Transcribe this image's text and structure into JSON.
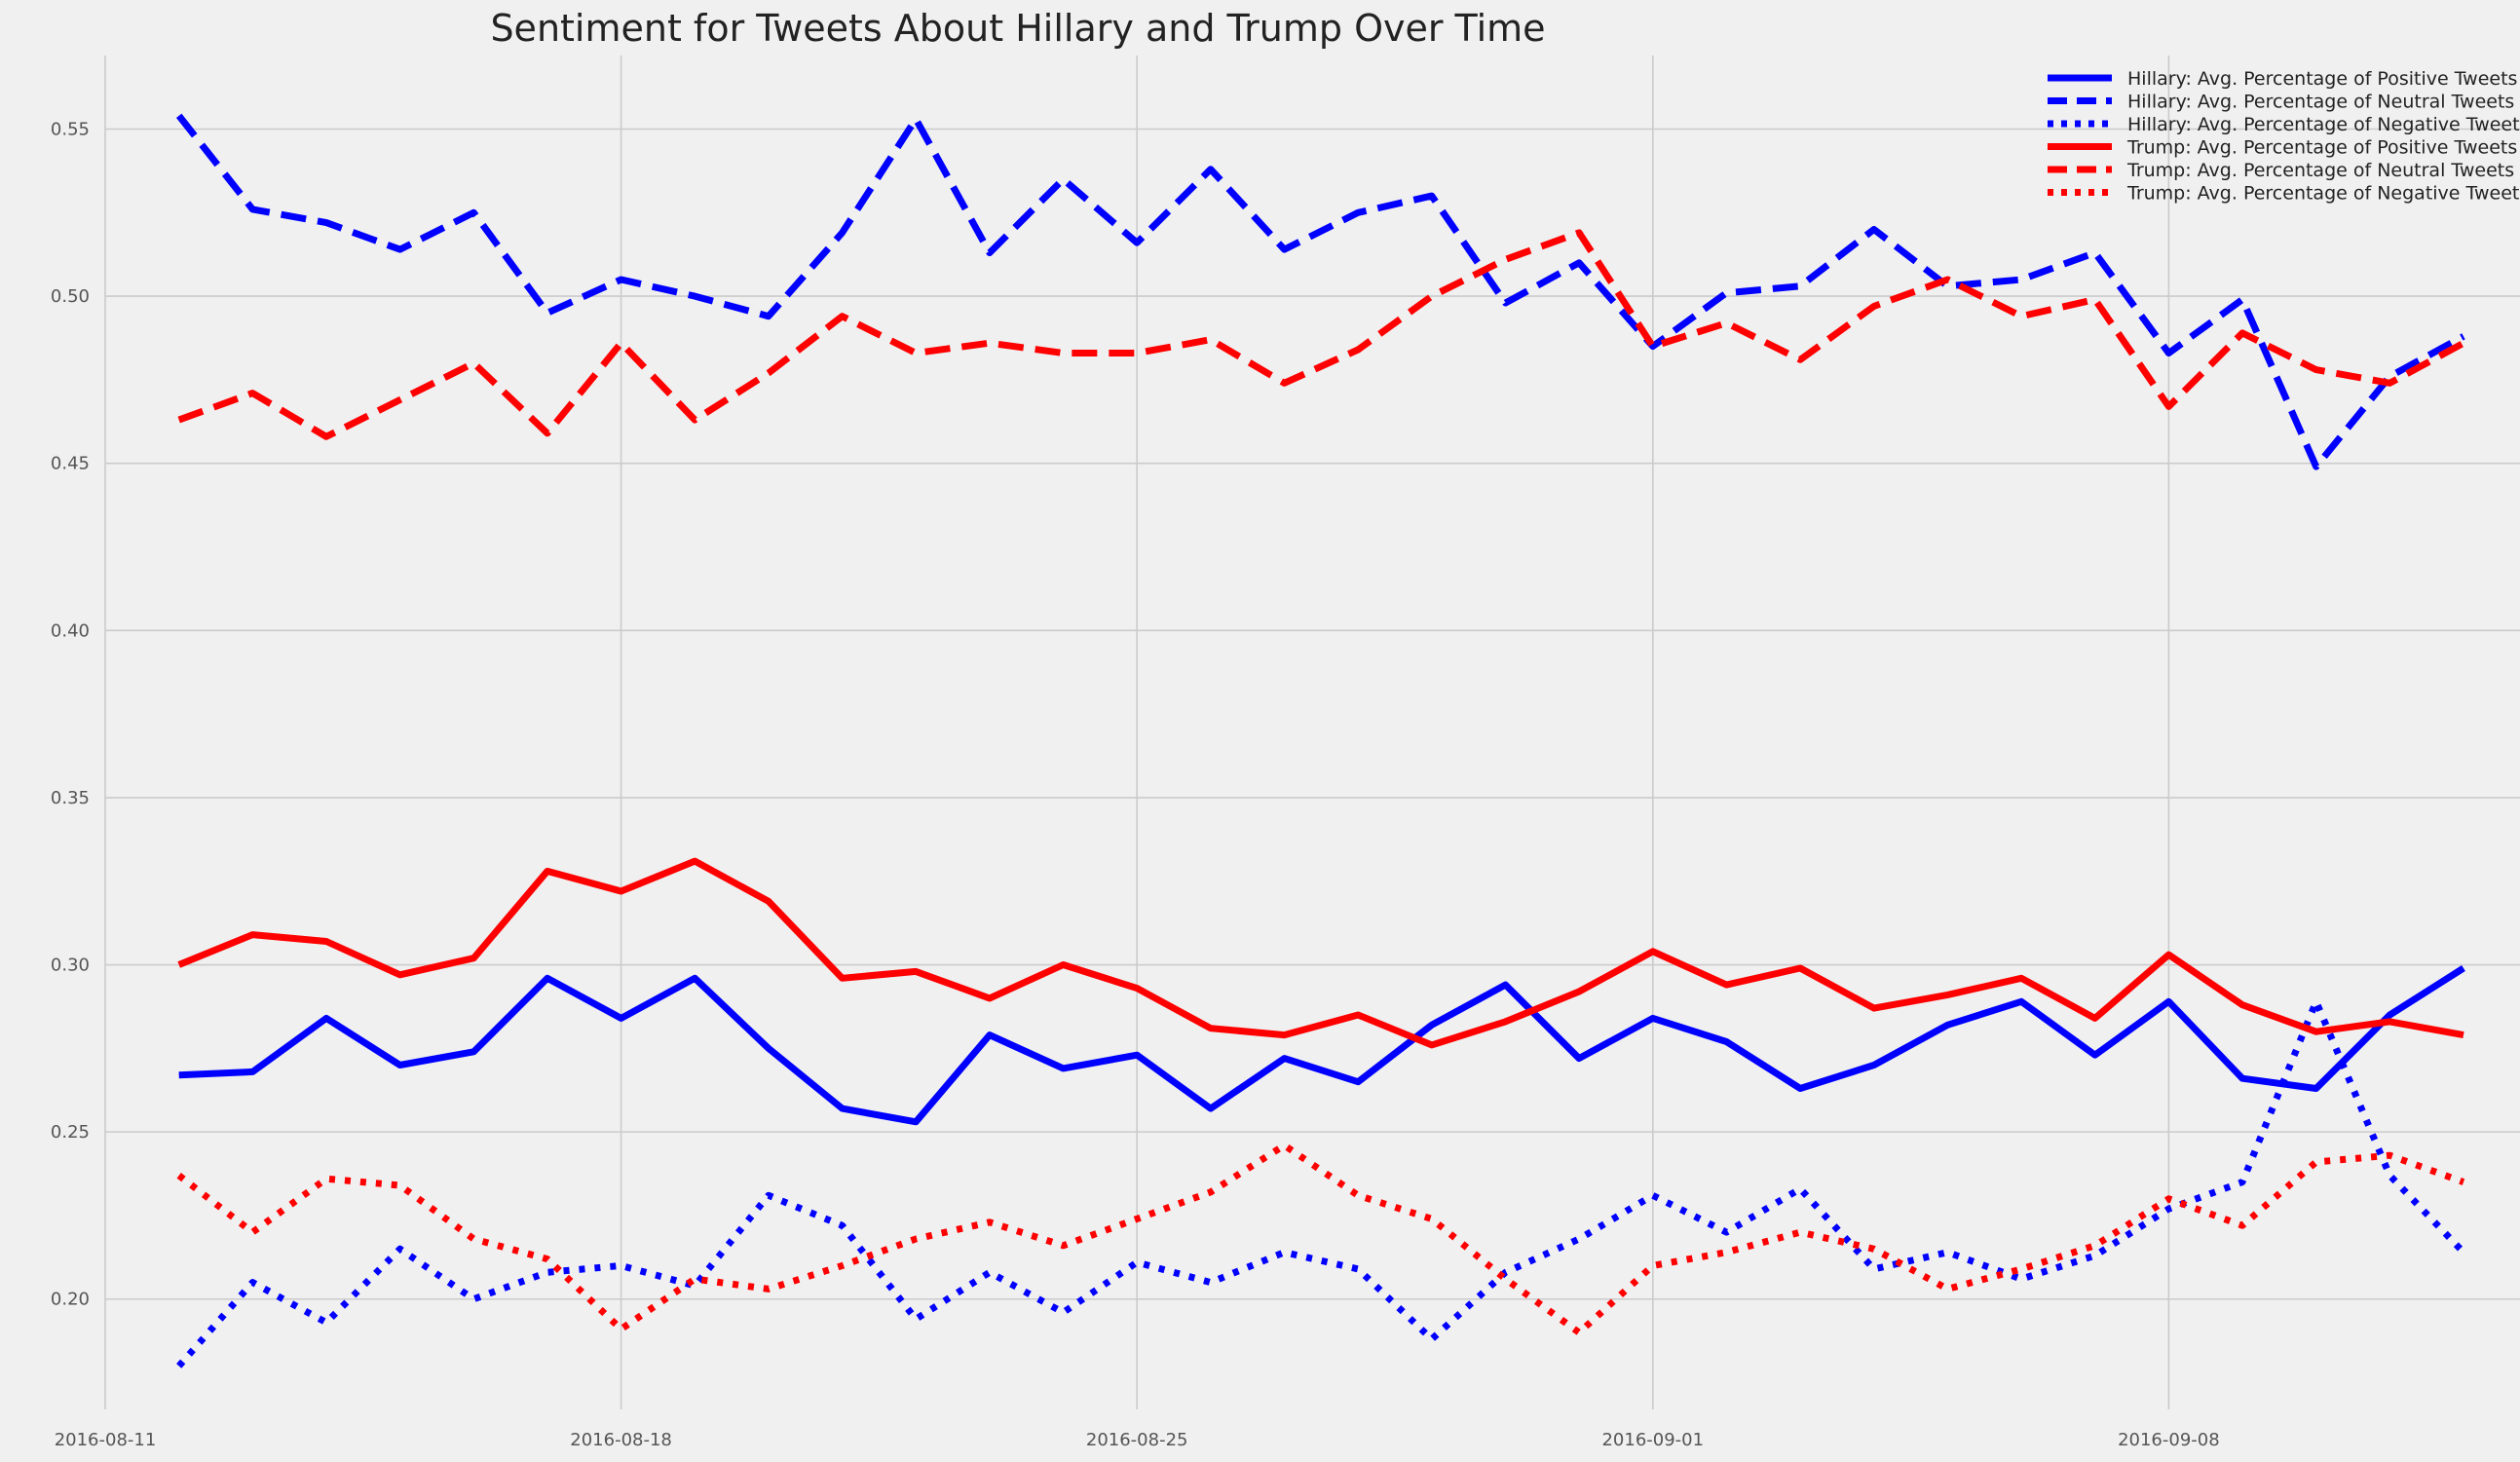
{
  "chart_data": {
    "type": "line",
    "title": "Sentiment for Tweets About Hillary and Trump Over Time",
    "xlabel": "",
    "ylabel": "",
    "x_start": "2016-08-11",
    "x_end": "2016-09-12",
    "x_ticks": [
      "2016-08-11",
      "2016-08-18",
      "2016-08-25",
      "2016-09-01",
      "2016-09-08"
    ],
    "ylim": [
      0.167,
      0.572
    ],
    "y_ticks": [
      0.2,
      0.25,
      0.3,
      0.35,
      0.4,
      0.45,
      0.5,
      0.55
    ],
    "y_tick_labels": [
      "0.20",
      "0.25",
      "0.30",
      "0.35",
      "0.40",
      "0.45",
      "0.50",
      "0.55"
    ],
    "grid": true,
    "legend_position": "top-right",
    "x": [
      "2016-08-12",
      "2016-08-13",
      "2016-08-14",
      "2016-08-15",
      "2016-08-16",
      "2016-08-17",
      "2016-08-18",
      "2016-08-19",
      "2016-08-20",
      "2016-08-21",
      "2016-08-22",
      "2016-08-23",
      "2016-08-24",
      "2016-08-25",
      "2016-08-26",
      "2016-08-27",
      "2016-08-28",
      "2016-08-29",
      "2016-08-30",
      "2016-08-31",
      "2016-09-01",
      "2016-09-02",
      "2016-09-03",
      "2016-09-04",
      "2016-09-05",
      "2016-09-06",
      "2016-09-07",
      "2016-09-08",
      "2016-09-09",
      "2016-09-10",
      "2016-09-11",
      "2016-09-12"
    ],
    "series": [
      {
        "name": "Hillary: Avg. Percentage of Positive Tweets",
        "color": "#0000ff",
        "style": "solid",
        "values": [
          0.267,
          0.268,
          0.284,
          0.27,
          0.274,
          0.296,
          0.284,
          0.296,
          0.275,
          0.257,
          0.253,
          0.279,
          0.269,
          0.273,
          0.257,
          0.272,
          0.265,
          0.282,
          0.294,
          0.272,
          0.284,
          0.277,
          0.263,
          0.27,
          0.282,
          0.289,
          0.273,
          0.289,
          0.266,
          0.263,
          0.285,
          0.299
        ]
      },
      {
        "name": "Hillary: Avg. Percentage of Neutral Tweets",
        "color": "#0000ff",
        "style": "dashed",
        "values": [
          0.554,
          0.526,
          0.522,
          0.514,
          0.525,
          0.495,
          0.505,
          0.5,
          0.494,
          0.519,
          0.553,
          0.513,
          0.535,
          0.516,
          0.538,
          0.514,
          0.525,
          0.53,
          0.498,
          0.51,
          0.485,
          0.501,
          0.503,
          0.52,
          0.503,
          0.505,
          0.513,
          0.483,
          0.499,
          0.449,
          0.476,
          0.488
        ]
      },
      {
        "name": "Hillary: Avg. Percentage of Negative Tweets",
        "color": "#0000ff",
        "style": "dotted",
        "values": [
          0.18,
          0.205,
          0.193,
          0.215,
          0.2,
          0.208,
          0.21,
          0.204,
          0.231,
          0.222,
          0.194,
          0.208,
          0.196,
          0.211,
          0.205,
          0.214,
          0.209,
          0.188,
          0.208,
          0.218,
          0.231,
          0.22,
          0.233,
          0.209,
          0.214,
          0.206,
          0.213,
          0.227,
          0.235,
          0.289,
          0.237,
          0.214
        ]
      },
      {
        "name": "Trump: Avg. Percentage of Positive Tweets",
        "color": "#ff0000",
        "style": "solid",
        "values": [
          0.3,
          0.309,
          0.307,
          0.297,
          0.302,
          0.328,
          0.322,
          0.331,
          0.319,
          0.296,
          0.298,
          0.29,
          0.3,
          0.293,
          0.281,
          0.279,
          0.285,
          0.276,
          0.283,
          0.292,
          0.304,
          0.294,
          0.299,
          0.287,
          0.291,
          0.296,
          0.284,
          0.303,
          0.288,
          0.28,
          0.283,
          0.279
        ]
      },
      {
        "name": "Trump: Avg. Percentage of Neutral Tweets",
        "color": "#ff0000",
        "style": "dashed",
        "values": [
          0.463,
          0.471,
          0.458,
          0.469,
          0.48,
          0.459,
          0.486,
          0.463,
          0.477,
          0.494,
          0.483,
          0.486,
          0.483,
          0.483,
          0.487,
          0.474,
          0.484,
          0.5,
          0.511,
          0.519,
          0.485,
          0.492,
          0.481,
          0.497,
          0.505,
          0.494,
          0.499,
          0.467,
          0.489,
          0.478,
          0.474,
          0.486
        ]
      },
      {
        "name": "Trump: Avg. Percentage of Negative Tweets",
        "color": "#ff0000",
        "style": "dotted",
        "values": [
          0.237,
          0.22,
          0.236,
          0.234,
          0.218,
          0.212,
          0.191,
          0.206,
          0.203,
          0.21,
          0.218,
          0.223,
          0.216,
          0.224,
          0.232,
          0.246,
          0.231,
          0.224,
          0.206,
          0.19,
          0.21,
          0.214,
          0.22,
          0.215,
          0.203,
          0.209,
          0.216,
          0.23,
          0.222,
          0.241,
          0.243,
          0.235
        ]
      }
    ]
  }
}
